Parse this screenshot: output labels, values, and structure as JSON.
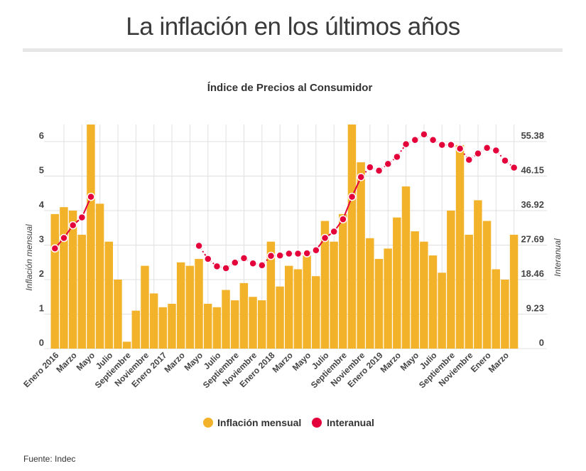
{
  "header": {
    "title": "La inflación en los últimos años"
  },
  "footer": {
    "source": "Fuente: Indec"
  },
  "colors": {
    "bar": "#f2b32a",
    "line": "#e4003a",
    "grid": "#e0e0e0"
  },
  "chart_data": {
    "type": "bar+line",
    "title": "Índice de Precios al Consumidor",
    "ylabel_left": "Inflación mensual",
    "ylabel_right": "Interanual",
    "ylim_left": [
      0,
      6.5
    ],
    "ylim_right": [
      0,
      60
    ],
    "left_ticks": [
      "0",
      "1",
      "2",
      "3",
      "4",
      "5",
      "6"
    ],
    "right_ticks": [
      "0",
      "9.23",
      "18.46",
      "27.69",
      "36.92",
      "46.15",
      "55.38"
    ],
    "grid": true,
    "legend_position": "bottom",
    "x_tick_labels": [
      "Enero 2016",
      "Marzo",
      "Mayo",
      "Julio",
      "Septiembre",
      "Noviembre",
      "Enero 2017",
      "Marzo",
      "Mayo",
      "Julio",
      "Septiembre",
      "Noviembre",
      "Enero 2018",
      "Marzo",
      "Mayo",
      "Julio",
      "Septiembre",
      "Noviembre",
      "Enero 2019",
      "Marzo",
      "Mayo",
      "Julio",
      "Septiembre",
      "Noviembre",
      "Enero",
      "Marzo"
    ],
    "series": [
      {
        "name": "Inflación mensual",
        "type": "bar",
        "axis": "left",
        "values": [
          3.9,
          4.1,
          4.0,
          3.3,
          6.5,
          4.2,
          3.1,
          2.0,
          0.2,
          1.1,
          2.4,
          1.6,
          1.2,
          1.3,
          2.5,
          2.4,
          2.6,
          1.3,
          1.2,
          1.7,
          1.4,
          1.9,
          1.5,
          1.4,
          3.1,
          1.8,
          2.4,
          2.3,
          2.7,
          2.1,
          3.7,
          3.1,
          3.9,
          6.5,
          5.4,
          3.2,
          2.6,
          2.9,
          3.8,
          4.7,
          3.4,
          3.1,
          2.7,
          2.2,
          4.0,
          5.9,
          3.3,
          4.3,
          3.7,
          2.3,
          2.0,
          3.3
        ]
      },
      {
        "name": "Interanual",
        "type": "line",
        "axis": "right",
        "values": [
          26.8,
          29.6,
          33.0,
          35.1,
          40.6,
          null,
          null,
          null,
          null,
          null,
          null,
          null,
          null,
          null,
          null,
          null,
          27.5,
          24.0,
          22.0,
          21.5,
          23.0,
          24.2,
          22.8,
          22.3,
          24.8,
          24.9,
          25.4,
          25.4,
          25.5,
          26.3,
          29.6,
          31.3,
          34.6,
          40.6,
          45.9,
          48.5,
          47.6,
          49.4,
          51.3,
          54.7,
          55.8,
          57.3,
          55.8,
          54.5,
          54.5,
          53.5,
          50.5,
          52.2,
          53.7,
          53.0,
          50.3,
          48.4
        ]
      }
    ]
  }
}
